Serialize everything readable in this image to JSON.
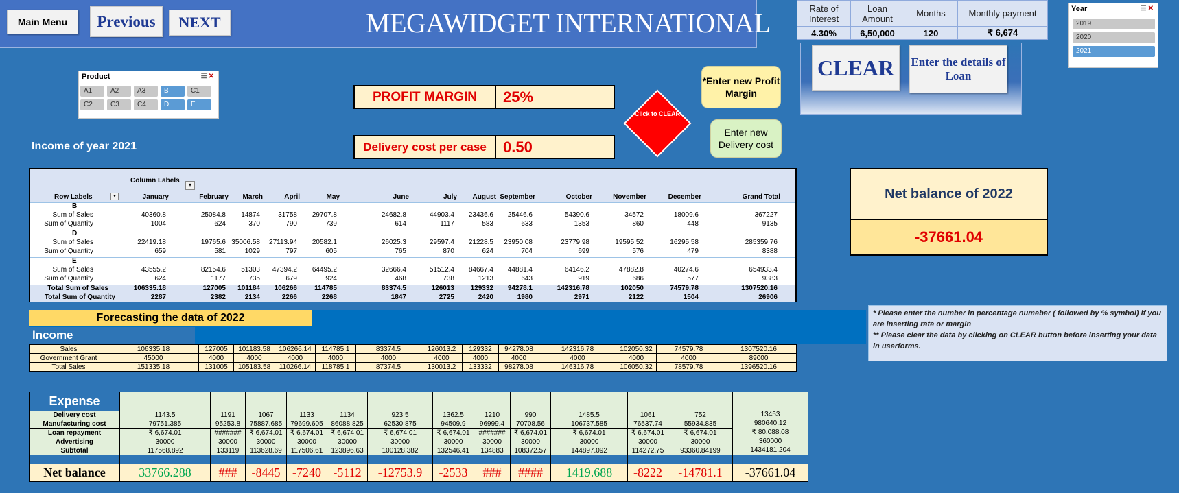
{
  "header": {
    "main_menu": "Main Menu",
    "previous": "Previous",
    "next": "NEXT",
    "title": "MEGAWIDGET INTERNATIONAL"
  },
  "loan": {
    "headers": [
      "Rate of Interest",
      "Loan Amount",
      "Months",
      "Monthly payment"
    ],
    "values": [
      "4.30%",
      "6,50,000",
      "120",
      "₹ 6,674"
    ],
    "clear_label": "CLEAR",
    "details_label": "Enter the details of Loan"
  },
  "product_slicer": {
    "title": "Product",
    "items": [
      {
        "label": "A1",
        "selected": false
      },
      {
        "label": "A2",
        "selected": false
      },
      {
        "label": "A3",
        "selected": false
      },
      {
        "label": "B",
        "selected": true
      },
      {
        "label": "C1",
        "selected": false
      },
      {
        "label": "C2",
        "selected": false
      },
      {
        "label": "C3",
        "selected": false
      },
      {
        "label": "C4",
        "selected": false
      },
      {
        "label": "D",
        "selected": true
      },
      {
        "label": "E",
        "selected": true
      }
    ]
  },
  "year_slicer": {
    "title": "Year",
    "items": [
      {
        "label": "2019",
        "selected": false
      },
      {
        "label": "2020",
        "selected": false
      },
      {
        "label": "2021",
        "selected": true
      }
    ]
  },
  "inputs": {
    "profit_margin_label": "PROFIT MARGIN",
    "profit_margin_value": "25%",
    "delivery_label": "Delivery cost per case",
    "delivery_value": "0.50",
    "click_clear": "Click to CLEAR",
    "enter_profit": "*Enter new Profit Margin",
    "enter_delivery": "Enter new Delivery cost"
  },
  "income_title": "Income of year 2021",
  "net_balance": {
    "title": "Net balance of 2022",
    "value": "-37661.04"
  },
  "pivot": {
    "column_labels": "Column Labels",
    "row_labels": "Row Labels",
    "months": [
      "January",
      "February",
      "March",
      "April",
      "May",
      "June",
      "July",
      "August",
      "September",
      "October",
      "November",
      "December",
      "Grand Total"
    ],
    "groups": [
      {
        "name": "B",
        "sales": [
          "40360.8",
          "25084.8",
          "14874",
          "31758",
          "29707.8",
          "24682.8",
          "44903.4",
          "23436.6",
          "25446.6",
          "54390.6",
          "34572",
          "18009.6",
          "367227"
        ],
        "qty": [
          "1004",
          "624",
          "370",
          "790",
          "739",
          "614",
          "1117",
          "583",
          "633",
          "1353",
          "860",
          "448",
          "9135"
        ]
      },
      {
        "name": "D",
        "sales": [
          "22419.18",
          "19765.6",
          "35006.58",
          "27113.94",
          "20582.1",
          "26025.3",
          "29597.4",
          "21228.5",
          "23950.08",
          "23779.98",
          "19595.52",
          "16295.58",
          "285359.76"
        ],
        "qty": [
          "659",
          "581",
          "1029",
          "797",
          "605",
          "765",
          "870",
          "624",
          "704",
          "699",
          "576",
          "479",
          "8388"
        ]
      },
      {
        "name": "E",
        "sales": [
          "43555.2",
          "82154.6",
          "51303",
          "47394.2",
          "64495.2",
          "32666.4",
          "51512.4",
          "84667.4",
          "44881.4",
          "64146.2",
          "47882.8",
          "40274.6",
          "654933.4"
        ],
        "qty": [
          "624",
          "1177",
          "735",
          "679",
          "924",
          "468",
          "738",
          "1213",
          "643",
          "919",
          "686",
          "577",
          "9383"
        ]
      }
    ],
    "sum_sales_label": "Sum of Sales",
    "sum_qty_label": "Sum of Quantity",
    "total_sales_label": "Total Sum of Sales",
    "total_qty_label": "Total Sum of Quantity",
    "total_sales": [
      "106335.18",
      "127005",
      "101184",
      "106266",
      "114785",
      "83374.5",
      "126013",
      "129332",
      "94278.1",
      "142316.78",
      "102050",
      "74579.78",
      "1307520.16"
    ],
    "total_qty": [
      "2287",
      "2382",
      "2134",
      "2266",
      "2268",
      "1847",
      "2725",
      "2420",
      "1980",
      "2971",
      "2122",
      "1504",
      "26906"
    ]
  },
  "forecast": {
    "title": "Forecasting the data of 2022",
    "income_label": "Income",
    "income_rows": [
      {
        "label": "Sales",
        "values": [
          "106335.18",
          "127005",
          "101183.58",
          "106266.14",
          "114785.1",
          "83374.5",
          "126013.2",
          "129332",
          "94278.08",
          "142316.78",
          "102050.32",
          "74579.78",
          "1307520.16"
        ]
      },
      {
        "label": "Government Grant",
        "values": [
          "45000",
          "4000",
          "4000",
          "4000",
          "4000",
          "4000",
          "4000",
          "4000",
          "4000",
          "4000",
          "4000",
          "4000",
          "89000"
        ]
      },
      {
        "label": "Total Sales",
        "values": [
          "151335.18",
          "131005",
          "105183.58",
          "110266.14",
          "118785.1",
          "87374.5",
          "130013.2",
          "133332",
          "98278.08",
          "146316.78",
          "106050.32",
          "78579.78",
          "1396520.16"
        ]
      }
    ],
    "expense_label": "Expense",
    "expense_rows": [
      {
        "label": "Delivery cost",
        "values": [
          "1143.5",
          "1191",
          "1067",
          "1133",
          "1134",
          "923.5",
          "1362.5",
          "1210",
          "990",
          "1485.5",
          "1061",
          "752"
        ],
        "total": "13453"
      },
      {
        "label": "Manufacturing cost",
        "values": [
          "79751.385",
          "95253.8",
          "75887.685",
          "79699.605",
          "86088.825",
          "62530.875",
          "94509.9",
          "96999.4",
          "70708.56",
          "106737.585",
          "76537.74",
          "55934.835"
        ],
        "total": "980640.12"
      },
      {
        "label": "Loan repayment",
        "values": [
          "₹ 6,674.01",
          "#######",
          "₹ 6,674.01",
          "₹ 6,674.01",
          "₹ 6,674.01",
          "₹ 6,674.01",
          "₹ 6,674.01",
          "#######",
          "₹ 6,674.01",
          "₹ 6,674.01",
          "₹ 6,674.01",
          "₹ 6,674.01"
        ],
        "total": "₹ 80,088.08"
      },
      {
        "label": "Advertising",
        "values": [
          "30000",
          "30000",
          "30000",
          "30000",
          "30000",
          "30000",
          "30000",
          "30000",
          "30000",
          "30000",
          "30000",
          "30000"
        ],
        "total": "360000"
      },
      {
        "label": "Subtotal",
        "values": [
          "117568.892",
          "133119",
          "113628.69",
          "117506.61",
          "123896.63",
          "100128.382",
          "132546.41",
          "134883",
          "108372.57",
          "144897.092",
          "114272.75",
          "93360.84199"
        ],
        "total": "1434181.204"
      }
    ],
    "net_label": "Net balance",
    "net_values": [
      "33766.288",
      "###",
      "-8445",
      "-7240",
      "-5112",
      "-12753.9",
      "-2533",
      "###",
      "####",
      "1419.688",
      "-8222",
      "-14781.1",
      "-37661.04"
    ],
    "net_signs": [
      "pos",
      "neg",
      "neg",
      "neg",
      "neg",
      "neg",
      "neg",
      "neg",
      "neg",
      "pos",
      "neg",
      "neg",
      "total"
    ]
  },
  "note": {
    "line1": "* Please enter the number in percentage numeber ( followed by % symbol) if you are inserting rate or margin",
    "line2": "** Please clear the data by clicking on CLEAR button before inserting your data in userforms."
  },
  "colors": {
    "background": "#2e75b6",
    "accent_red": "#e00000",
    "accent_green": "#00a651",
    "cream": "#fff2cc"
  }
}
